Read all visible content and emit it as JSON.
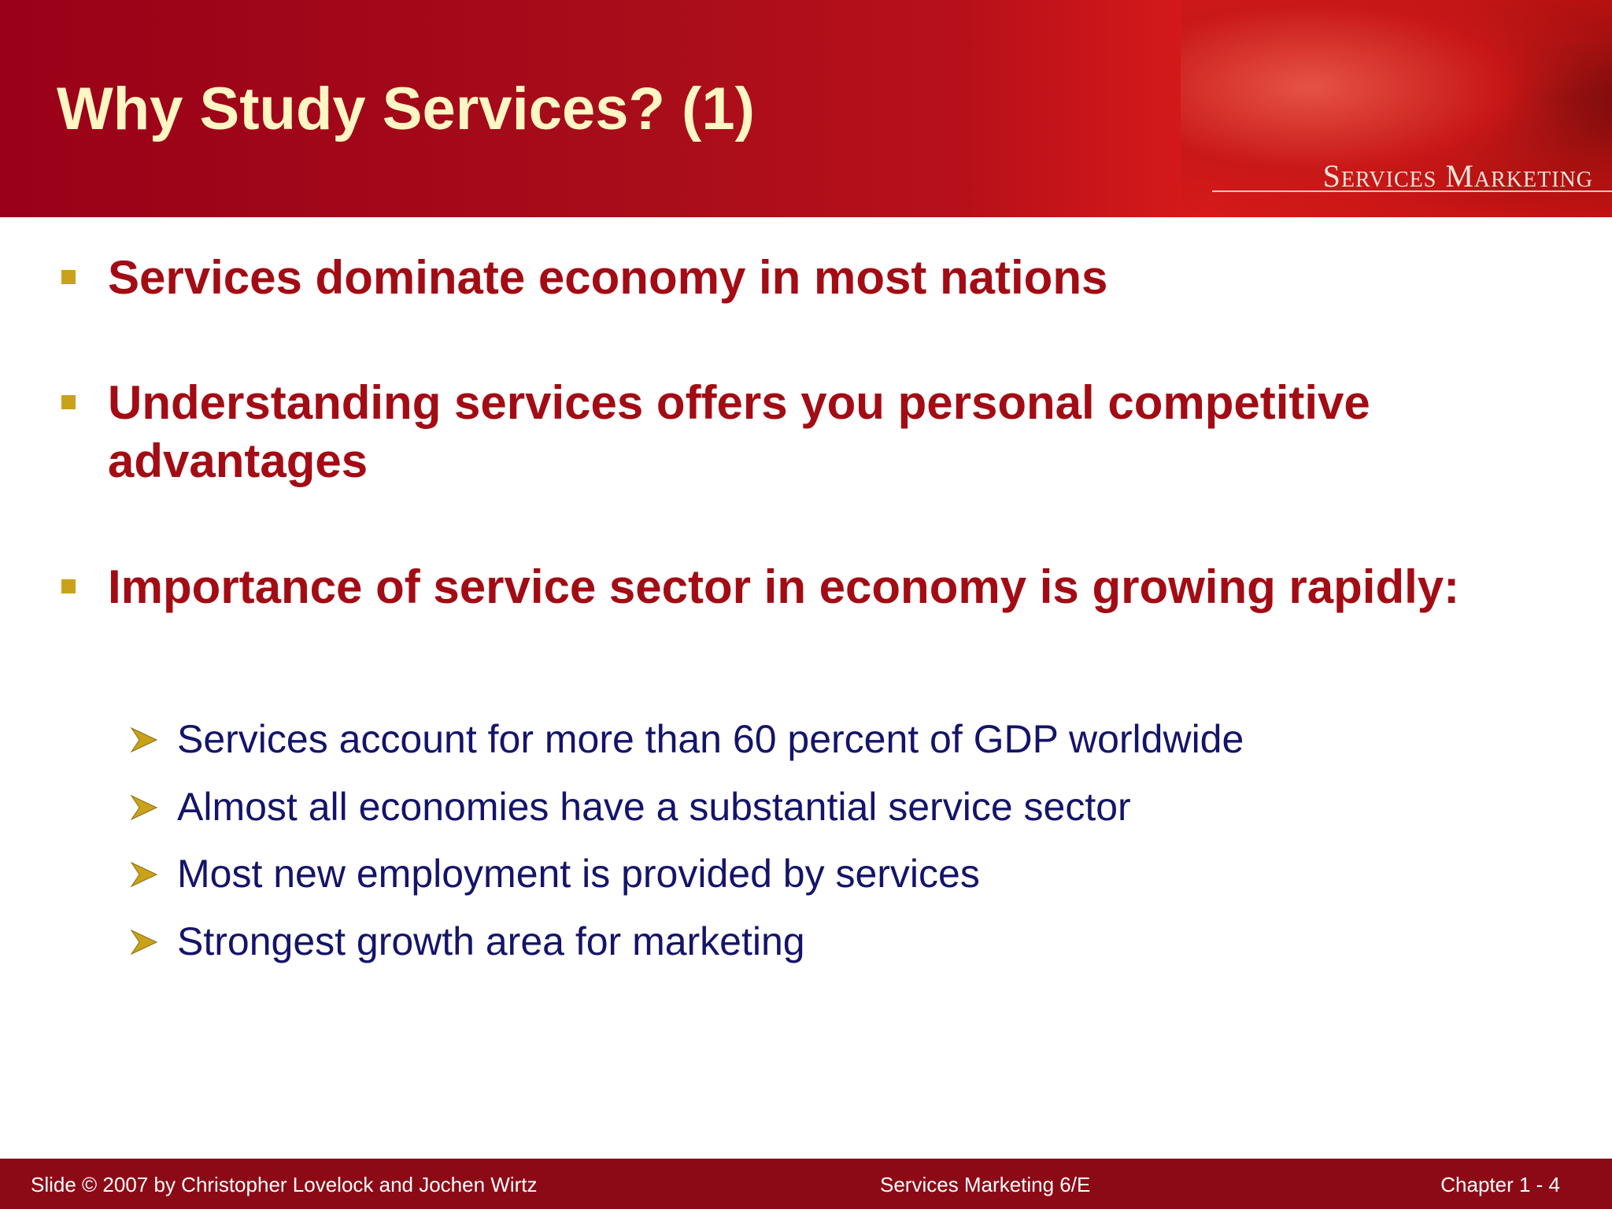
{
  "header": {
    "title": "Why Study Services? (1)",
    "logo": "Services Marketing"
  },
  "bullets": [
    {
      "text": "Services dominate economy in most nations"
    },
    {
      "text": "Understanding services offers you personal competitive advantages"
    },
    {
      "text": "Importance of service sector in economy is growing rapidly:",
      "sub": [
        "Services account for more than 60 percent of GDP worldwide",
        "Almost all economies have a substantial service sector",
        "Most new employment is provided by services",
        "Strongest growth area for marketing"
      ]
    }
  ],
  "footer": {
    "left": "Slide © 2007 by Christopher Lovelock and Jochen Wirtz",
    "center": "Services Marketing 6/E",
    "right": "Chapter 1 - 4"
  }
}
